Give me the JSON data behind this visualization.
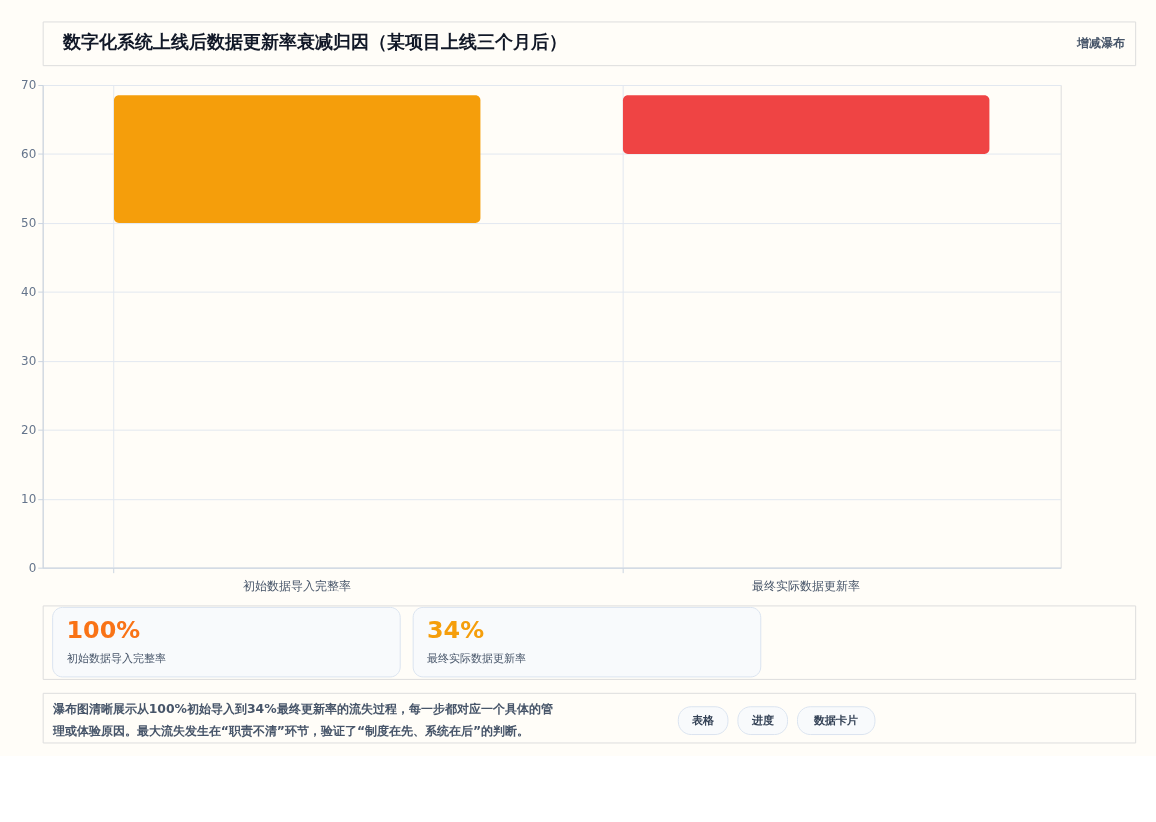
{
  "chart_data": {
    "type": "bar",
    "title": "数字化系统上线后数据更新率衰减归因（某项目上线三个月后）",
    "categories": [
      "初始数据导入完整率",
      "最终实际数据更新率"
    ],
    "values": [
      18.5,
      8.5
    ],
    "base": [
      50,
      60
    ],
    "colors": [
      "#f59e0b",
      "#ef4444"
    ],
    "ylim": [
      0,
      70
    ],
    "yticks": [
      0,
      10,
      20,
      30,
      40,
      50,
      60,
      70
    ],
    "grid": true,
    "annotations": [
      "增减瀑布",
      "100%",
      "初始数据导入完整率",
      "34%",
      "最终实际数据更新率",
      "瀑布图清晰展示从100%初始导入到34%最终更新率的流失过程，每一步都对应一个具体的管理或体验原因。最大流失发生在“职责不清”环节，验证了“制度在先、系统在后”的判断。",
      "表格",
      "进度",
      "数据卡片"
    ]
  }
}
